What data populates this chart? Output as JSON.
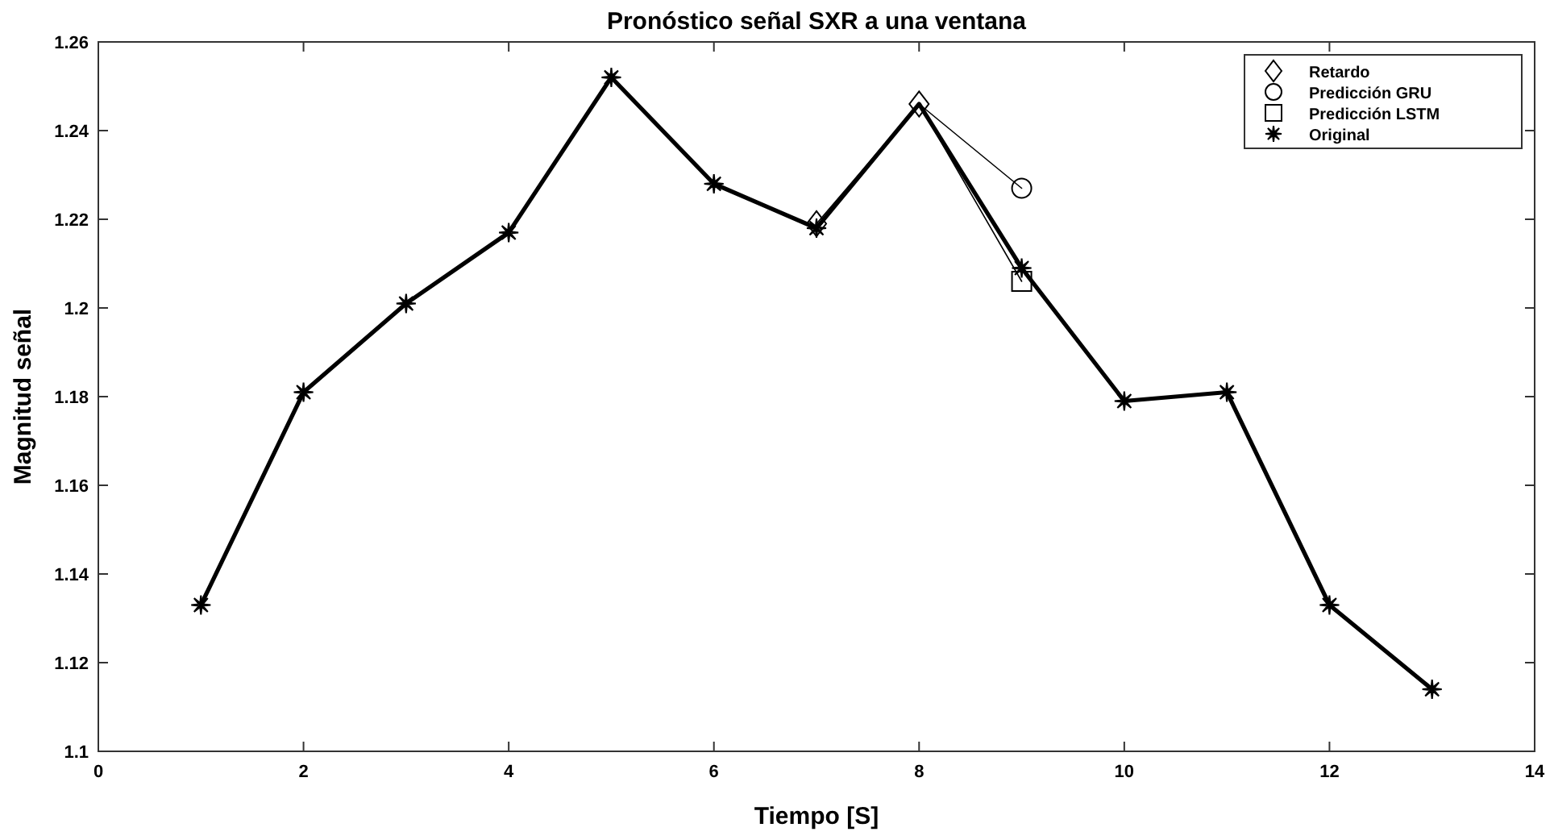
{
  "chart_data": {
    "type": "line",
    "title": "Pronóstico señal SXR a una ventana",
    "xlabel": "Tiempo [S]",
    "ylabel": "Magnitud señal",
    "xlim": [
      0,
      14
    ],
    "xticks": [
      0,
      2,
      4,
      6,
      8,
      10,
      12,
      14
    ],
    "ylim": [
      1.1,
      1.26
    ],
    "yticks": [
      1.1,
      1.12,
      1.14,
      1.16,
      1.18,
      1.2,
      1.22,
      1.24,
      1.26
    ],
    "grid": false,
    "legend": "top right",
    "series": [
      {
        "name": "Retardo",
        "color": "#000000",
        "marker": "diamond",
        "x": [
          7,
          8
        ],
        "values": [
          1.219,
          1.246
        ]
      },
      {
        "name": "Predicción GRU",
        "color": "#000000",
        "marker": "circle",
        "x": [
          8,
          9
        ],
        "values": [
          1.246,
          1.227
        ]
      },
      {
        "name": "Predicción LSTM",
        "color": "#000000",
        "marker": "square",
        "x": [
          8,
          9
        ],
        "values": [
          1.246,
          1.206
        ]
      },
      {
        "name": "Original",
        "color": "#000000",
        "marker": "star",
        "x": [
          1,
          2,
          3,
          4,
          5,
          6,
          7,
          8,
          9,
          10,
          11,
          12,
          13
        ],
        "values": [
          1.133,
          1.181,
          1.201,
          1.217,
          1.252,
          1.228,
          1.218,
          1.246,
          1.209,
          1.179,
          1.181,
          1.133,
          1.114
        ]
      }
    ]
  }
}
